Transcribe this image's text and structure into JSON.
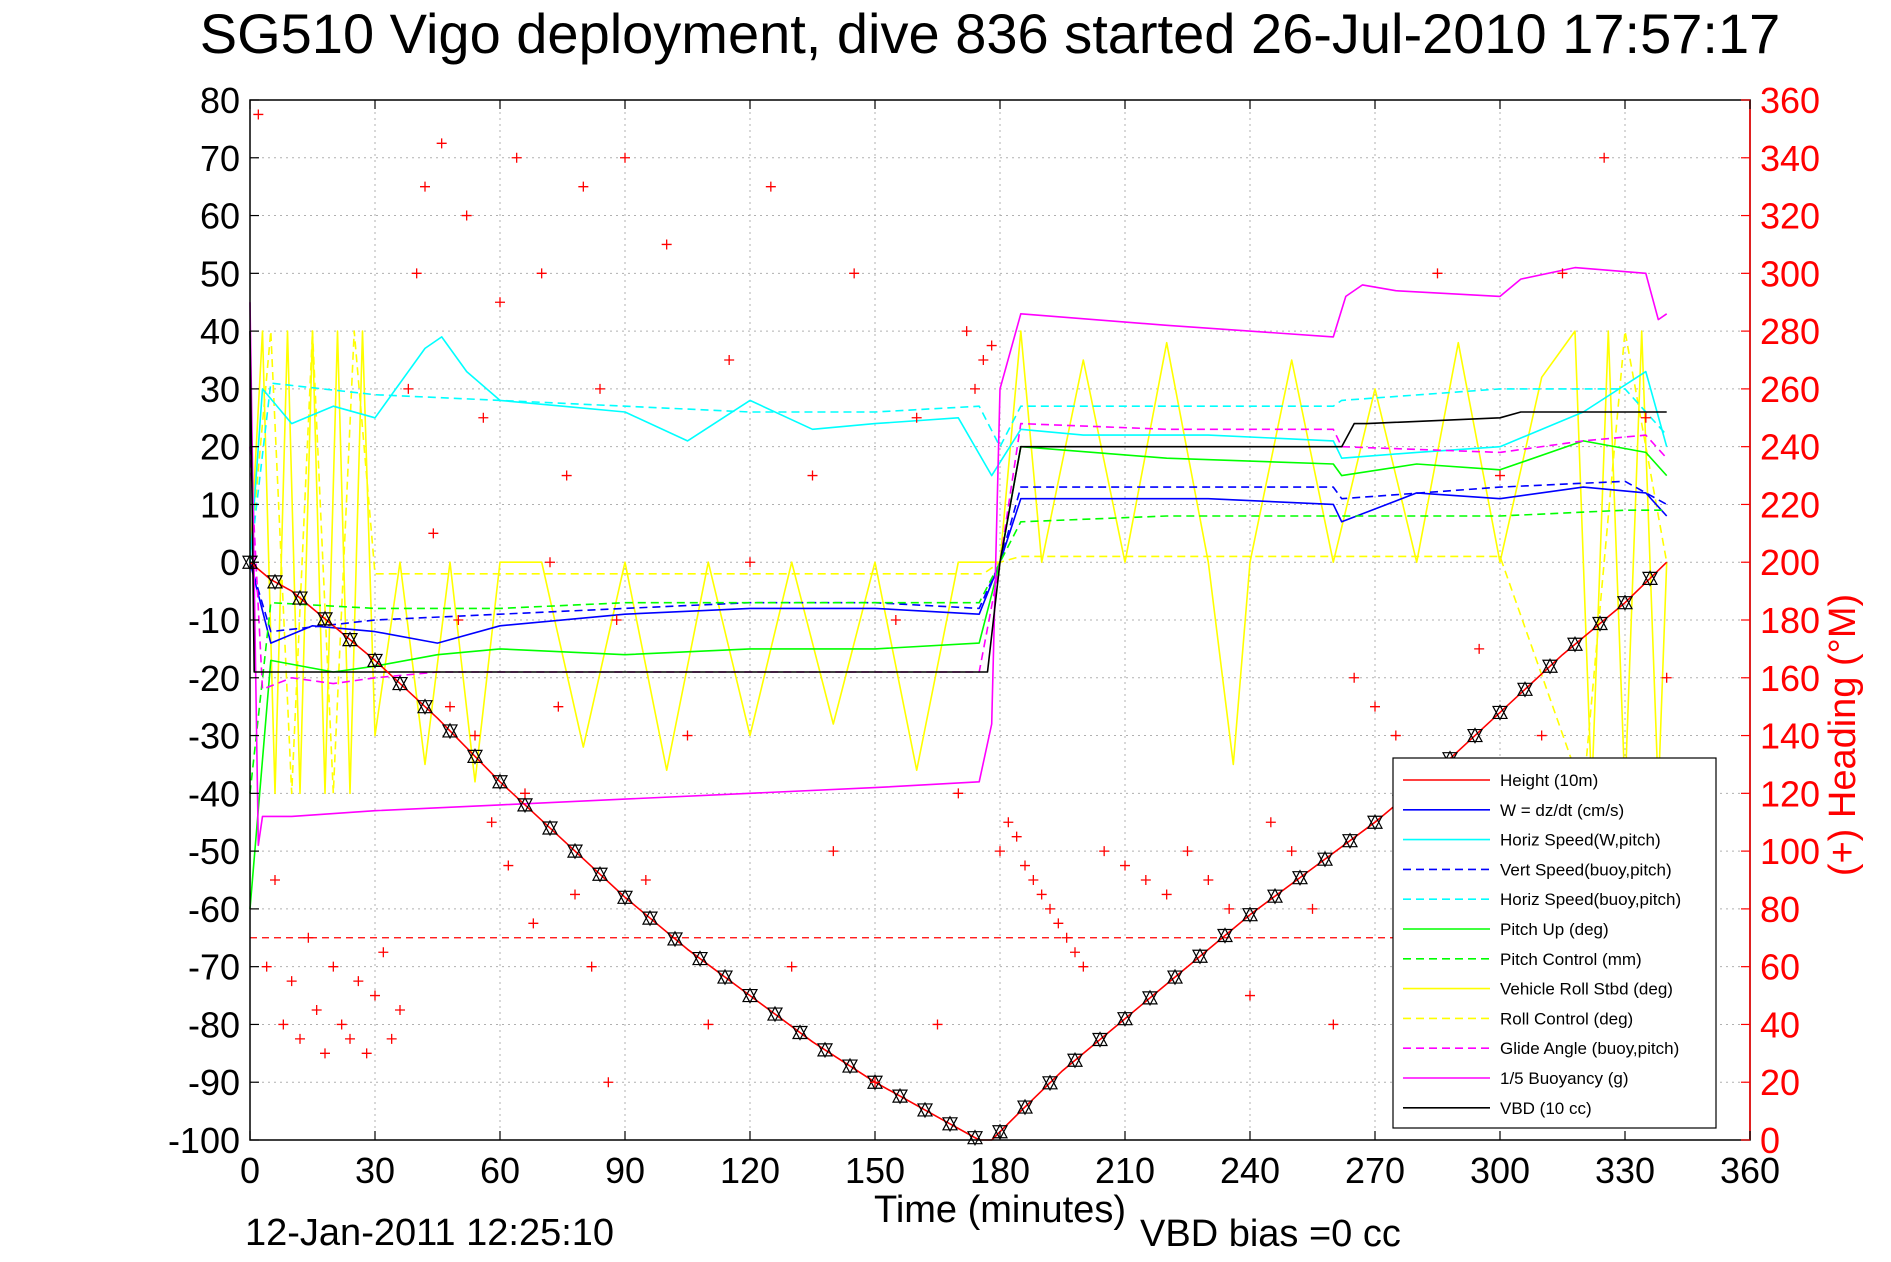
{
  "chart_data": {
    "type": "line",
    "title": "SG510 Vigo deployment, dive 836 started 26-Jul-2010 17:57:17",
    "xlabel": "Time (minutes)",
    "ylabel": "",
    "y2label": "(+) Heading (°M)",
    "xlim": [
      0,
      360
    ],
    "ylim": [
      -100,
      80
    ],
    "y2lim": [
      0,
      360
    ],
    "xticks": [
      0,
      30,
      60,
      90,
      120,
      150,
      180,
      210,
      240,
      270,
      300,
      330,
      360
    ],
    "yticks": [
      80,
      70,
      60,
      50,
      40,
      30,
      20,
      10,
      0,
      -10,
      -20,
      -30,
      -40,
      -50,
      -60,
      -70,
      -80,
      -90,
      -100
    ],
    "y2ticks": [
      360,
      340,
      320,
      300,
      280,
      260,
      240,
      220,
      200,
      180,
      160,
      140,
      120,
      100,
      80,
      60,
      40,
      20,
      0
    ],
    "grid": true,
    "legend_position": "lower-right",
    "footer_left": "12-Jan-2011 12:25:10",
    "footer_right": "VBD bias =0 cc",
    "colors": {
      "red": "#ff0000",
      "blue": "#0000ff",
      "cyan": "#00ffff",
      "green": "#00ff00",
      "yellow": "#ffff00",
      "magenta": "#ff00ff",
      "black": "#000000"
    },
    "series": [
      {
        "name": "Height (10m)",
        "color": "#ff0000",
        "dash": false,
        "x": [
          0,
          5,
          10,
          20,
          30,
          45,
          60,
          75,
          90,
          105,
          120,
          135,
          150,
          165,
          175,
          178,
          185,
          195,
          210,
          225,
          240,
          255,
          270,
          285,
          300,
          315,
          330,
          340
        ],
        "y": [
          0,
          -3,
          -5,
          -11,
          -17,
          -27,
          -38,
          -48,
          -58,
          -67,
          -75,
          -83,
          -90,
          -96,
          -100,
          -100,
          -95,
          -88,
          -79,
          -70,
          -61,
          -53,
          -45,
          -36,
          -26,
          -16,
          -7,
          0
        ]
      },
      {
        "name": "W = dz/dt (cm/s)",
        "color": "#0000ff",
        "dash": false,
        "x": [
          0,
          5,
          15,
          30,
          45,
          60,
          90,
          120,
          150,
          175,
          180,
          185,
          200,
          230,
          260,
          262,
          280,
          300,
          320,
          335,
          340
        ],
        "y": [
          0,
          -14,
          -11,
          -12,
          -14,
          -11,
          -9,
          -8,
          -8,
          -9,
          0,
          11,
          11,
          11,
          10,
          7,
          12,
          11,
          13,
          12,
          8
        ]
      },
      {
        "name": "Horiz Speed(W,pitch)",
        "color": "#00ffff",
        "dash": false,
        "x": [
          0,
          3,
          10,
          20,
          30,
          35,
          42,
          46,
          52,
          60,
          75,
          90,
          105,
          120,
          135,
          150,
          170,
          178,
          185,
          200,
          230,
          260,
          262,
          280,
          300,
          320,
          335,
          340
        ],
        "y": [
          0,
          30,
          24,
          27,
          25,
          30,
          37,
          39,
          33,
          28,
          27,
          26,
          21,
          28,
          23,
          24,
          25,
          15,
          23,
          22,
          22,
          21,
          18,
          19,
          20,
          26,
          33,
          20
        ]
      },
      {
        "name": "Vert Speed(buoy,pitch)",
        "color": "#0000ff",
        "dash": true,
        "x": [
          0,
          5,
          30,
          60,
          90,
          120,
          150,
          175,
          180,
          185,
          220,
          260,
          262,
          300,
          330,
          340
        ],
        "y": [
          0,
          -12,
          -10,
          -9,
          -8,
          -7,
          -7,
          -8,
          0,
          13,
          13,
          13,
          11,
          13,
          14,
          10
        ]
      },
      {
        "name": "Horiz Speed(buoy,pitch)",
        "color": "#00ffff",
        "dash": true,
        "x": [
          0,
          5,
          30,
          60,
          90,
          120,
          150,
          175,
          180,
          185,
          220,
          260,
          262,
          300,
          330,
          340
        ],
        "y": [
          0,
          31,
          29,
          28,
          27,
          26,
          26,
          27,
          20,
          27,
          27,
          27,
          28,
          30,
          30,
          22
        ]
      },
      {
        "name": "Pitch Up (deg)",
        "color": "#00ff00",
        "dash": false,
        "x": [
          0,
          5,
          20,
          30,
          45,
          60,
          90,
          120,
          150,
          175,
          180,
          185,
          220,
          260,
          262,
          280,
          300,
          320,
          335,
          340
        ],
        "y": [
          -60,
          -17,
          -19,
          -18,
          -16,
          -15,
          -16,
          -15,
          -15,
          -14,
          0,
          20,
          18,
          17,
          15,
          17,
          16,
          21,
          19,
          15
        ]
      },
      {
        "name": "Pitch Control (mm)",
        "color": "#00ff00",
        "dash": true,
        "x": [
          0,
          5,
          30,
          60,
          90,
          120,
          150,
          175,
          180,
          185,
          220,
          260,
          300,
          330,
          340
        ],
        "y": [
          -40,
          -7,
          -8,
          -8,
          -7,
          -7,
          -7,
          -7,
          0,
          7,
          8,
          8,
          8,
          9,
          9
        ]
      },
      {
        "name": "Vehicle Roll Stbd (deg)",
        "color": "#ffff00",
        "dash": false,
        "x": [
          0,
          3,
          6,
          9,
          12,
          15,
          18,
          21,
          24,
          27,
          30,
          36,
          42,
          48,
          54,
          60,
          70,
          80,
          90,
          100,
          110,
          120,
          130,
          140,
          150,
          160,
          170,
          176,
          180,
          185,
          190,
          200,
          210,
          220,
          230,
          236,
          240,
          250,
          260,
          270,
          280,
          290,
          300,
          310,
          318,
          322,
          326,
          330,
          334,
          338,
          340
        ],
        "y": [
          0,
          40,
          -40,
          40,
          -40,
          40,
          -40,
          40,
          -40,
          40,
          -30,
          0,
          -35,
          0,
          -38,
          0,
          0,
          -32,
          0,
          -36,
          0,
          -30,
          0,
          -28,
          0,
          -36,
          0,
          0,
          0,
          40,
          0,
          35,
          0,
          38,
          0,
          -35,
          0,
          35,
          0,
          30,
          0,
          38,
          0,
          32,
          40,
          -40,
          40,
          -40,
          40,
          -40,
          0
        ]
      },
      {
        "name": "Roll Control (deg)",
        "color": "#ffff00",
        "dash": true,
        "x": [
          0,
          5,
          10,
          15,
          20,
          25,
          30,
          45,
          60,
          90,
          120,
          150,
          176,
          180,
          185,
          220,
          260,
          300,
          320,
          330,
          340
        ],
        "y": [
          0,
          40,
          -40,
          40,
          -40,
          40,
          -2,
          -2,
          -2,
          -2,
          -2,
          -2,
          -2,
          0,
          1,
          1,
          1,
          1,
          -40,
          40,
          0
        ]
      },
      {
        "name": "Glide Angle (buoy,pitch)",
        "color": "#ff00ff",
        "dash": true,
        "x": [
          0,
          3,
          10,
          20,
          30,
          45,
          60,
          90,
          120,
          150,
          175,
          180,
          185,
          220,
          260,
          262,
          300,
          320,
          335,
          340
        ],
        "y": [
          20,
          -22,
          -20,
          -21,
          -20,
          -19,
          -19,
          -19,
          -19,
          -19,
          -19,
          0,
          24,
          23,
          23,
          20,
          19,
          21,
          22,
          18
        ]
      },
      {
        "name": "1/5 Buoyancy (g)",
        "color": "#ff00ff",
        "dash": false,
        "x": [
          0,
          2,
          3,
          10,
          30,
          60,
          90,
          120,
          150,
          175,
          178,
          180,
          185,
          220,
          260,
          263,
          267,
          275,
          300,
          305,
          318,
          335,
          338,
          340
        ],
        "y": [
          45,
          -49,
          -44,
          -44,
          -43,
          -42,
          -41,
          -40,
          -39,
          -38,
          -28,
          30,
          43,
          41,
          39,
          46,
          48,
          47,
          46,
          49,
          51,
          50,
          42,
          43
        ]
      },
      {
        "name": "VBD (10 cc)",
        "color": "#000000",
        "dash": false,
        "x": [
          0,
          1,
          30,
          60,
          90,
          120,
          150,
          175,
          177,
          180,
          185,
          220,
          260,
          262,
          265,
          268,
          300,
          305,
          340
        ],
        "y": [
          40,
          -19,
          -19,
          -19,
          -19,
          -19,
          -19,
          -19,
          -19,
          0,
          20,
          20,
          20,
          20,
          24,
          24,
          25,
          26,
          26
        ]
      },
      {
        "name": "Heading (+)",
        "color": "#ff0000",
        "axis": "right",
        "marker": "+",
        "legend": false,
        "x": [
          2,
          4,
          6,
          8,
          10,
          12,
          14,
          16,
          18,
          20,
          22,
          24,
          26,
          28,
          30,
          32,
          34,
          36,
          38,
          40,
          42,
          44,
          46,
          48,
          50,
          52,
          54,
          56,
          58,
          60,
          62,
          64,
          66,
          68,
          70,
          72,
          74,
          76,
          78,
          80,
          82,
          84,
          86,
          88,
          90,
          95,
          100,
          105,
          110,
          115,
          120,
          125,
          130,
          135,
          140,
          145,
          150,
          155,
          160,
          165,
          170,
          172,
          174,
          176,
          178,
          180,
          182,
          184,
          186,
          188,
          190,
          192,
          194,
          196,
          198,
          200,
          205,
          210,
          215,
          220,
          225,
          230,
          235,
          240,
          245,
          250,
          255,
          260,
          265,
          270,
          275,
          280,
          285,
          290,
          295,
          300,
          305,
          310,
          315,
          320,
          325,
          330,
          335,
          340
        ],
        "y": [
          355,
          60,
          90,
          40,
          55,
          35,
          70,
          45,
          30,
          60,
          40,
          35,
          55,
          30,
          50,
          65,
          35,
          45,
          260,
          300,
          330,
          210,
          345,
          150,
          180,
          320,
          140,
          250,
          110,
          290,
          95,
          340,
          120,
          75,
          300,
          200,
          150,
          230,
          85,
          330,
          60,
          260,
          20,
          180,
          340,
          90,
          310,
          140,
          40,
          270,
          200,
          330,
          60,
          230,
          100,
          300,
          20,
          180,
          250,
          40,
          120,
          280,
          260,
          270,
          275,
          100,
          110,
          105,
          95,
          90,
          85,
          80,
          75,
          70,
          65,
          60,
          100,
          95,
          90,
          85,
          100,
          90,
          80,
          50,
          110,
          100,
          80,
          40,
          160,
          150,
          140,
          20,
          300,
          90,
          170,
          230,
          60,
          140,
          300,
          110,
          340,
          60,
          250,
          160
        ]
      }
    ]
  }
}
